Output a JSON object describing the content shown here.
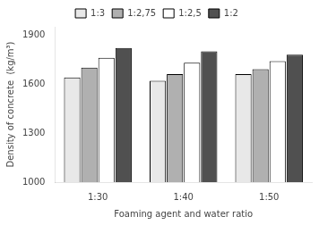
{
  "chart_data": {
    "type": "bar",
    "xlabel": "Foaming agent and water ratio",
    "ylabel": "Density of concrete  (kg/m³)",
    "categories": [
      "1:30",
      "1:40",
      "1:50"
    ],
    "series": [
      {
        "name": "1:3",
        "color": "#e8e8e8",
        "values": [
          1640,
          1620,
          1660
        ]
      },
      {
        "name": "1:2,75",
        "color": "#b0b0b0",
        "values": [
          1700,
          1660,
          1690
        ]
      },
      {
        "name": "1:2,5",
        "color": "#ffffff",
        "values": [
          1760,
          1730,
          1740
        ]
      },
      {
        "name": "1:2",
        "color": "#505050",
        "values": [
          1820,
          1800,
          1780
        ]
      }
    ],
    "ylim": [
      1000,
      1950
    ],
    "yticks": [
      1000,
      1300,
      1600,
      1900
    ],
    "grid": false,
    "legend": "top"
  }
}
